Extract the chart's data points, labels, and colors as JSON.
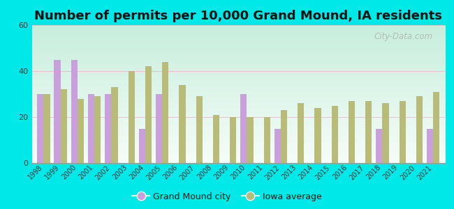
{
  "title": "Number of permits per 10,000 Grand Mound, IA residents",
  "years": [
    "1998",
    "1999",
    "2000",
    "2001",
    "2002",
    "2003",
    "2004",
    "2005",
    "2006",
    "2007",
    "2008",
    "2009",
    "2010",
    "2011",
    "2012",
    "2013",
    "2014",
    "2015",
    "2016",
    "2017",
    "2018",
    "2019",
    "2020",
    "2021"
  ],
  "grand_mound": [
    30,
    45,
    45,
    30,
    30,
    null,
    15,
    30,
    null,
    null,
    null,
    null,
    30,
    null,
    15,
    null,
    null,
    null,
    null,
    null,
    15,
    null,
    null,
    15
  ],
  "iowa_avg": [
    30,
    32,
    28,
    29,
    33,
    40,
    42,
    44,
    34,
    29,
    21,
    20,
    20,
    20,
    23,
    26,
    24,
    25,
    27,
    27,
    26,
    27,
    29,
    31
  ],
  "grand_mound_color": "#c9a0dc",
  "iowa_avg_color": "#b8bc78",
  "background_outer": "#00e8e8",
  "background_inner": "#e0f5e8",
  "ylim": [
    0,
    60
  ],
  "yticks": [
    0,
    20,
    40,
    60
  ],
  "bar_width": 0.38,
  "legend_grand_mound": "Grand Mound city",
  "legend_iowa": "Iowa average",
  "title_fontsize": 13,
  "watermark": "City-Data.com"
}
